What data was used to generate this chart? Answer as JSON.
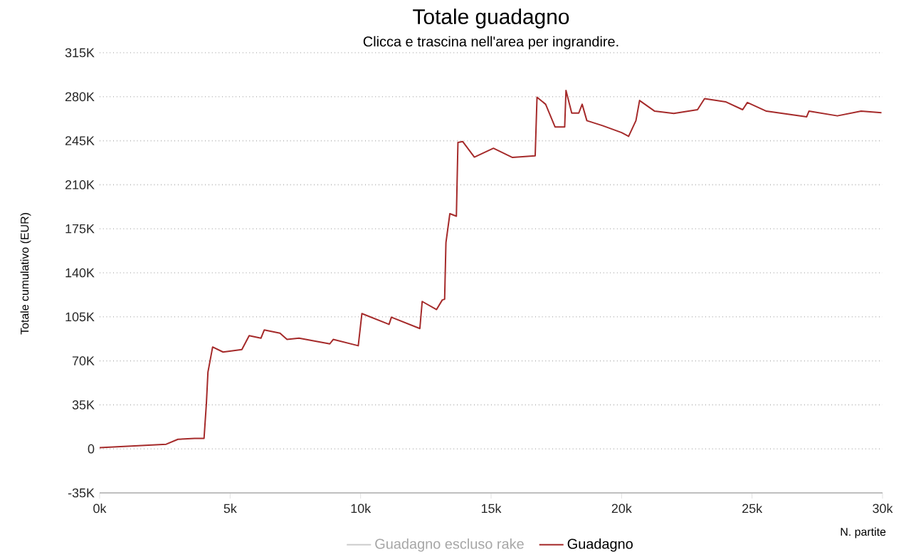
{
  "chart_data": {
    "type": "line",
    "title": "Totale guadagno",
    "subtitle": "Clicca e trascina nell'area per ingrandire.",
    "xlabel": "N. partite",
    "ylabel": "Totale cumulativo (EUR)",
    "xlim": [
      0,
      30000
    ],
    "xticks": [
      {
        "value": 0,
        "label": "0k"
      },
      {
        "value": 5000,
        "label": "5k"
      },
      {
        "value": 10000,
        "label": "10k"
      },
      {
        "value": 15000,
        "label": "15k"
      },
      {
        "value": 20000,
        "label": "20k"
      },
      {
        "value": 25000,
        "label": "25k"
      },
      {
        "value": 30000,
        "label": "30k"
      }
    ],
    "ylim": [
      -35000,
      315000
    ],
    "yticks": [
      {
        "value": -35000,
        "label": "-35K"
      },
      0,
      {
        "value": 35000,
        "label": "35K"
      },
      {
        "value": 70000,
        "label": "70K"
      },
      {
        "value": 105000,
        "label": "105K"
      },
      {
        "value": 140000,
        "label": "140K"
      },
      {
        "value": 175000,
        "label": "175K"
      },
      {
        "value": 210000,
        "label": "210K"
      },
      {
        "value": 245000,
        "label": "245K"
      },
      {
        "value": 280000,
        "label": "280K"
      },
      {
        "value": 315000,
        "label": "315K"
      }
    ],
    "grid": "y",
    "legend": "bottom",
    "marker": "none",
    "line_style": "solid",
    "series": [
      {
        "name": "Guadagno escluso rake",
        "color": "#cccccc"
      },
      {
        "name": "Guadagno",
        "color": "#a52a2a",
        "x": [
          0,
          2550,
          3000,
          3640,
          4000,
          4090,
          4150,
          4330,
          4730,
          5450,
          5730,
          6180,
          6310,
          6910,
          7180,
          7640,
          8820,
          8950,
          9910,
          10050,
          11090,
          11180,
          12270,
          12360,
          12910,
          13130,
          13220,
          13270,
          13420,
          13670,
          13730,
          13910,
          14360,
          15090,
          15820,
          16690,
          16760,
          17090,
          17450,
          17820,
          17870,
          18090,
          18360,
          18490,
          18670,
          19270,
          20000,
          20270,
          20550,
          20690,
          21270,
          22000,
          22910,
          23180,
          24000,
          24640,
          24820,
          25550,
          27090,
          27180,
          28270,
          29180,
          29960
        ],
        "values": [
          1000,
          3700,
          7600,
          8300,
          8300,
          36000,
          61000,
          81000,
          77000,
          79000,
          90000,
          88000,
          94600,
          92000,
          87000,
          88000,
          83500,
          87000,
          82000,
          107600,
          99000,
          104700,
          95700,
          117200,
          110800,
          118400,
          119000,
          164000,
          187000,
          185000,
          243600,
          244400,
          232000,
          239000,
          231700,
          233000,
          279600,
          274000,
          256000,
          256000,
          285000,
          267000,
          267000,
          274000,
          261000,
          257000,
          251500,
          248500,
          261000,
          277000,
          268500,
          266700,
          269700,
          278500,
          275900,
          269700,
          275400,
          268500,
          264000,
          268500,
          264800,
          268500,
          267300
        ]
      }
    ]
  }
}
